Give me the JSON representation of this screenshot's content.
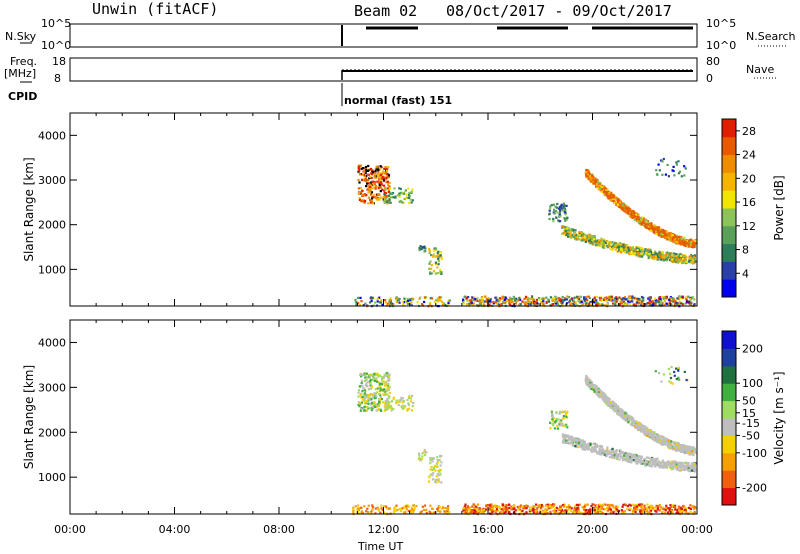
{
  "header": {
    "radar": "Unwin (fitACF)",
    "beam": "Beam 02",
    "date_range": "08/Oct/2017 - 09/Oct/2017"
  },
  "summary": {
    "nsky_label": "N.Sky",
    "nsky_ticks": [
      "10^5",
      "10^0"
    ],
    "nsearch_label": "N.Search",
    "nsearch_ticks": [
      "10^5",
      "10^0"
    ],
    "freq_label": "Freq.",
    "freq_unit": "[MHz]",
    "freq_ticks": [
      "18",
      "8"
    ],
    "nave_label": "Nave",
    "nave_ticks": [
      "80",
      "0"
    ],
    "cpid_label": "CPID",
    "cpid_text": "normal (fast) 151"
  },
  "chart_data": [
    {
      "type": "heatmap",
      "title": "",
      "ylabel": "Slant Range [km]",
      "yticks": [
        "4000",
        "3000",
        "2000",
        "1000"
      ],
      "ylim": [
        180,
        4500
      ],
      "xlim_hours": [
        0,
        24
      ],
      "colorbar": {
        "label": "Power [dB]",
        "ticks": [
          "28",
          "24",
          "20",
          "16",
          "12",
          "8",
          "4"
        ],
        "range": [
          0,
          30
        ],
        "colors": [
          "#0000ee",
          "#2a3fa8",
          "#2e7d5a",
          "#5aa05a",
          "#8cc35a",
          "#f2e600",
          "#f5b400",
          "#f08c00",
          "#e85a00",
          "#e01e00"
        ]
      }
    },
    {
      "type": "heatmap",
      "title": "",
      "ylabel": "Slant Range [km]",
      "yticks": [
        "4000",
        "3000",
        "2000",
        "1000"
      ],
      "ylim": [
        180,
        4500
      ],
      "xlim_hours": [
        0,
        24
      ],
      "colorbar": {
        "label": "Velocity [m s⁻¹]",
        "ticks": [
          "200",
          "100",
          "50",
          "15",
          "-15",
          "-50",
          "-100",
          "-200"
        ],
        "range": [
          -250,
          250
        ],
        "colors": [
          "#e01010",
          "#f06010",
          "#f5a000",
          "#f5d000",
          "#bebebe",
          "#a0dc60",
          "#40b040",
          "#207040",
          "#2040a0",
          "#1010d0"
        ]
      }
    }
  ],
  "x_axis": {
    "ticks": [
      "00:00",
      "04:00",
      "08:00",
      "12:00",
      "16:00",
      "20:00",
      "00:00"
    ],
    "label": "Time UT"
  }
}
